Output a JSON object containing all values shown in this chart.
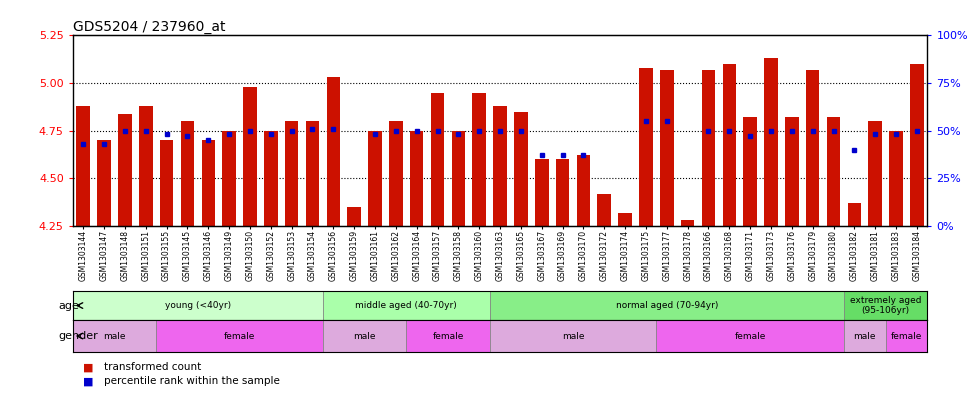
{
  "title": "GDS5204 / 237960_at",
  "samples": [
    "GSM1303144",
    "GSM1303147",
    "GSM1303148",
    "GSM1303151",
    "GSM1303155",
    "GSM1303145",
    "GSM1303146",
    "GSM1303149",
    "GSM1303150",
    "GSM1303152",
    "GSM1303153",
    "GSM1303154",
    "GSM1303156",
    "GSM1303159",
    "GSM1303161",
    "GSM1303162",
    "GSM1303164",
    "GSM1303157",
    "GSM1303158",
    "GSM1303160",
    "GSM1303163",
    "GSM1303165",
    "GSM1303167",
    "GSM1303169",
    "GSM1303170",
    "GSM1303172",
    "GSM1303174",
    "GSM1303175",
    "GSM1303177",
    "GSM1303178",
    "GSM1303166",
    "GSM1303168",
    "GSM1303171",
    "GSM1303173",
    "GSM1303176",
    "GSM1303179",
    "GSM1303180",
    "GSM1303182",
    "GSM1303181",
    "GSM1303183",
    "GSM1303184"
  ],
  "bar_values": [
    4.88,
    4.7,
    4.84,
    4.88,
    4.7,
    4.8,
    4.7,
    4.75,
    4.98,
    4.75,
    4.8,
    4.8,
    5.03,
    4.35,
    4.75,
    4.8,
    4.75,
    4.95,
    4.75,
    4.95,
    4.88,
    4.85,
    4.6,
    4.6,
    4.62,
    4.42,
    4.32,
    5.08,
    5.07,
    4.28,
    5.07,
    5.1,
    4.82,
    5.13,
    4.82,
    5.07,
    4.82,
    4.37,
    4.8,
    4.75,
    5.1
  ],
  "percentile_values": [
    4.68,
    4.68,
    4.75,
    4.75,
    4.73,
    4.72,
    4.7,
    4.73,
    4.75,
    4.73,
    4.75,
    4.76,
    4.76,
    null,
    4.73,
    4.75,
    4.75,
    4.75,
    4.73,
    4.75,
    4.75,
    4.75,
    4.62,
    4.62,
    4.62,
    null,
    null,
    4.8,
    4.8,
    null,
    4.75,
    4.75,
    4.72,
    4.75,
    4.75,
    4.75,
    4.75,
    4.65,
    4.73,
    4.73,
    4.75
  ],
  "ylim_left": [
    4.25,
    5.25
  ],
  "ylim_right": [
    0,
    100
  ],
  "yticks_left": [
    4.25,
    4.5,
    4.75,
    5.0,
    5.25
  ],
  "yticks_right": [
    0,
    25,
    50,
    75,
    100
  ],
  "bar_color": "#CC1100",
  "dot_color": "#0000CC",
  "bar_bottom": 4.25,
  "hlines": [
    4.5,
    4.75,
    5.0
  ],
  "age_groups": [
    {
      "label": "young (<40yr)",
      "start": 0,
      "end": 12,
      "color": "#ccffcc"
    },
    {
      "label": "middle aged (40-70yr)",
      "start": 12,
      "end": 20,
      "color": "#aaffaa"
    },
    {
      "label": "normal aged (70-94yr)",
      "start": 20,
      "end": 37,
      "color": "#88ee88"
    },
    {
      "label": "extremely aged\n(95-106yr)",
      "start": 37,
      "end": 41,
      "color": "#66dd66"
    }
  ],
  "gender_groups": [
    {
      "label": "male",
      "start": 0,
      "end": 4,
      "color": "#ddaadd"
    },
    {
      "label": "female",
      "start": 4,
      "end": 12,
      "color": "#ee66ee"
    },
    {
      "label": "male",
      "start": 12,
      "end": 16,
      "color": "#ddaadd"
    },
    {
      "label": "female",
      "start": 16,
      "end": 20,
      "color": "#ee66ee"
    },
    {
      "label": "male",
      "start": 20,
      "end": 28,
      "color": "#ddaadd"
    },
    {
      "label": "female",
      "start": 28,
      "end": 37,
      "color": "#ee66ee"
    },
    {
      "label": "male",
      "start": 37,
      "end": 39,
      "color": "#ddaadd"
    },
    {
      "label": "female",
      "start": 39,
      "end": 41,
      "color": "#ee66ee"
    }
  ]
}
